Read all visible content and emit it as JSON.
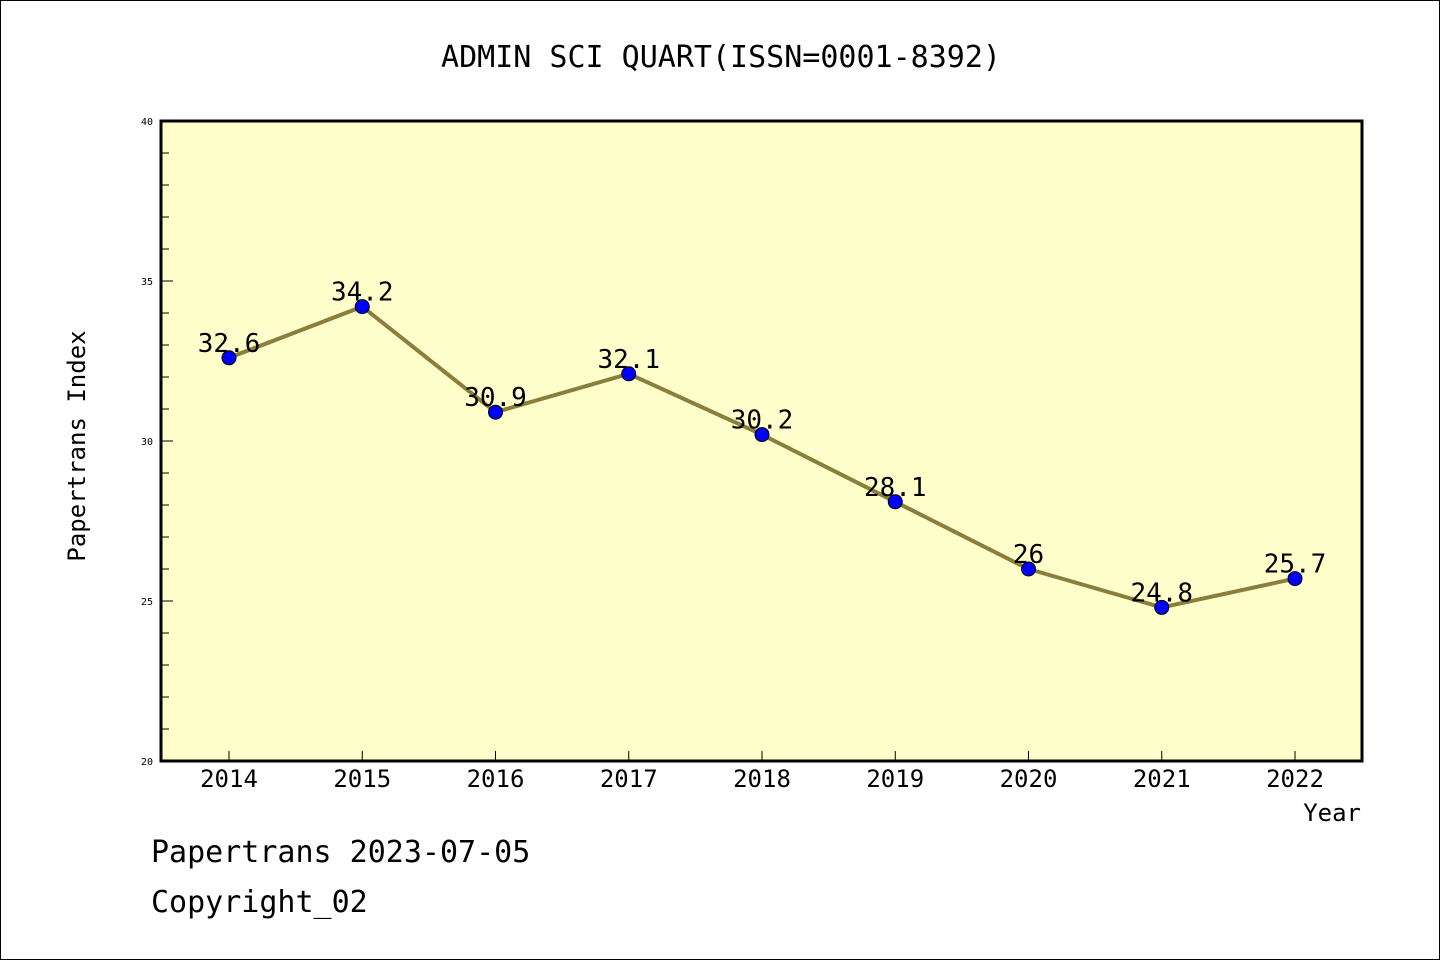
{
  "chart_data": {
    "type": "line",
    "title": "ADMIN SCI QUART(ISSN=0001-8392)",
    "xlabel": "Year",
    "ylabel": "Papertrans Index",
    "categories": [
      "2014",
      "2015",
      "2016",
      "2017",
      "2018",
      "2019",
      "2020",
      "2021",
      "2022"
    ],
    "values": [
      32.6,
      34.2,
      30.9,
      32.1,
      30.2,
      28.1,
      26,
      24.8,
      25.7
    ],
    "value_labels": [
      "32.6",
      "34.2",
      "30.9",
      "32.1",
      "30.2",
      "28.1",
      "26",
      "24.8",
      "25.7"
    ],
    "y_ticks": [
      "20",
      "25",
      "30",
      "35",
      "40"
    ],
    "ylim": [
      20,
      40
    ],
    "grid": false,
    "legend": "none",
    "colors": {
      "plot_background": "#ffffcc",
      "line": "#8b7d3a",
      "marker": "#0000ff"
    }
  },
  "footer": {
    "line1": "Papertrans 2023-07-05",
    "line2": "Copyright_02"
  }
}
